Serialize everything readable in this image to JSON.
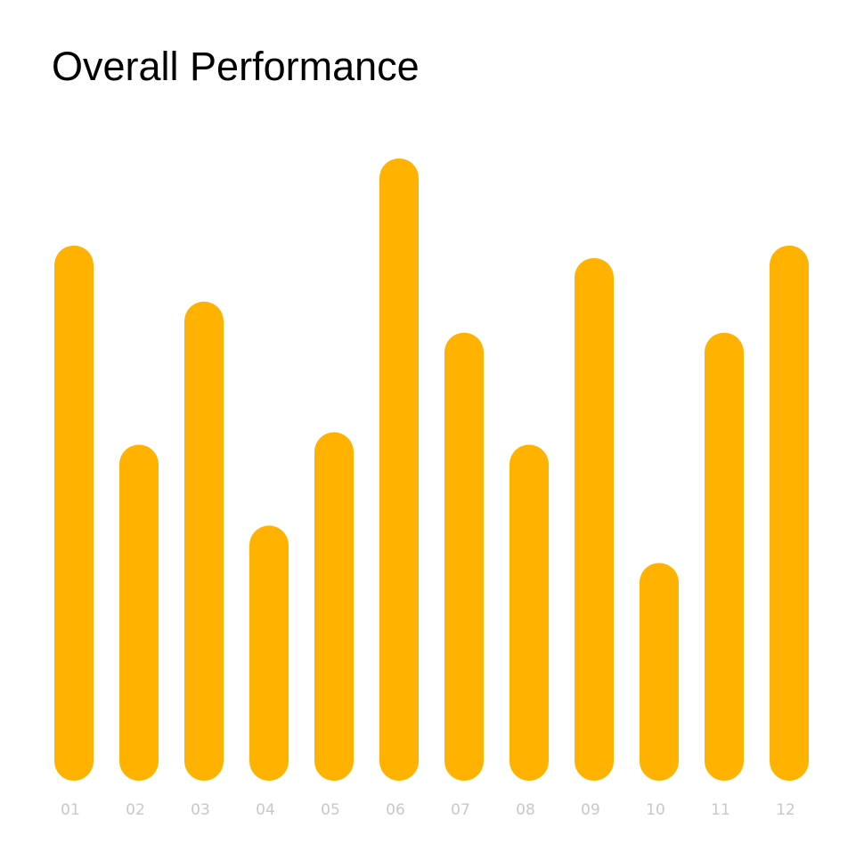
{
  "chart_data": {
    "type": "bar",
    "title": "Overall Performance",
    "categories": [
      "01",
      "02",
      "03",
      "04",
      "05",
      "06",
      "07",
      "08",
      "09",
      "10",
      "11",
      "12"
    ],
    "values": [
      86,
      54,
      77,
      41,
      56,
      100,
      72,
      54,
      84,
      35,
      72,
      86
    ],
    "ylim": [
      0,
      100
    ],
    "grid": false,
    "colors": {
      "bar": "#FFB300",
      "tick_label": "#C8C8C8",
      "title": "#000000"
    }
  }
}
